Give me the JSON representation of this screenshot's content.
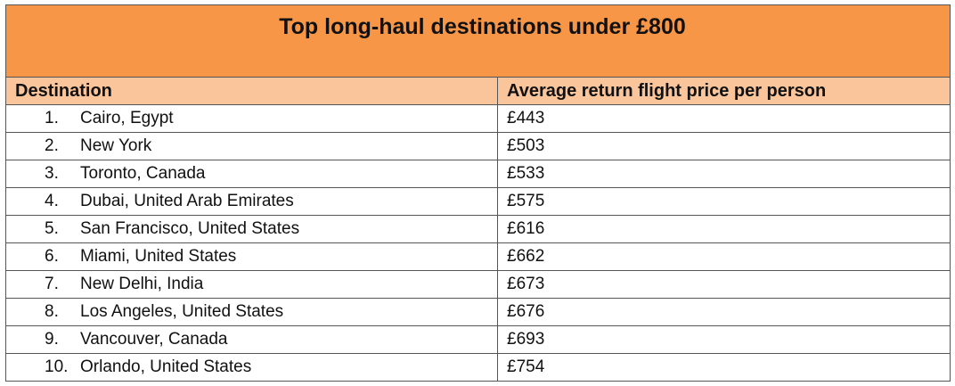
{
  "table": {
    "title": "Top long-haul destinations under £800",
    "header": [
      "Destination",
      "Average return flight price per person"
    ],
    "rows": [
      [
        "1.",
        "Cairo, Egypt",
        "£443"
      ],
      [
        "2.",
        "New York",
        "£503"
      ],
      [
        "3.",
        "Toronto, Canada",
        "£533"
      ],
      [
        "4.",
        "Dubai, United Arab Emirates",
        "£575"
      ],
      [
        "5.",
        "San Francisco, United States",
        "£616"
      ],
      [
        "6.",
        "Miami, United States",
        "£662"
      ],
      [
        "7.",
        "New Delhi, India",
        "£673"
      ],
      [
        "8.",
        "Los Angeles, United States",
        "£676"
      ],
      [
        "9.",
        "Vancouver, Canada",
        "£693"
      ],
      [
        "10.",
        "Orlando, United States",
        "£754"
      ]
    ]
  }
}
